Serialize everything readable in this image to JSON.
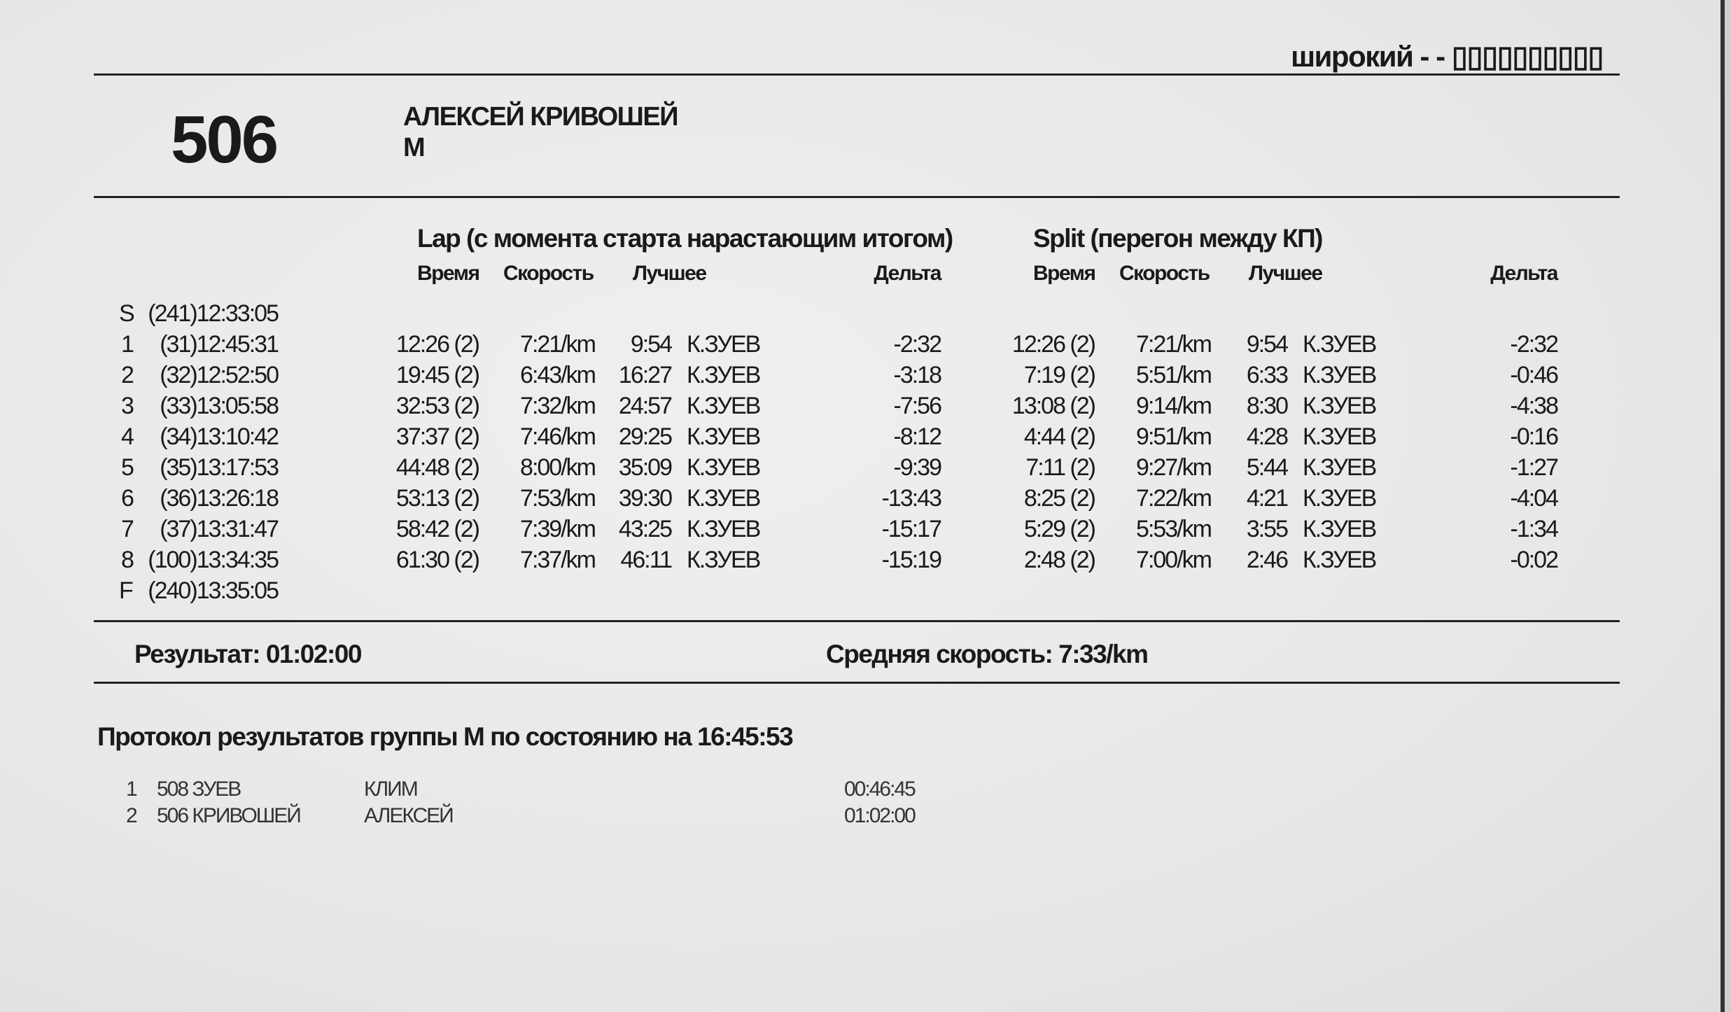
{
  "header": {
    "course_label": "широкий - - ▯▯▯▯▯▯▯▯▯▯",
    "bib": "506",
    "name": "АЛЕКСЕЙ КРИВОШЕЙ",
    "group": "М"
  },
  "lap": {
    "title": "Lap (с момента старта нарастающим итогом)",
    "columns": {
      "time": "Время",
      "speed": "Скорость",
      "best": "Лучшее",
      "delta": "Дельта"
    }
  },
  "split": {
    "title": "Split (перегон между КП)",
    "columns": {
      "time": "Время",
      "speed": "Скорость",
      "best": "Лучшее",
      "delta": "Дельта"
    }
  },
  "start": {
    "label": "S",
    "control": "(241)12:33:05"
  },
  "finish": {
    "label": "F",
    "control": "(240)13:35:05"
  },
  "rows": [
    {
      "n": "1",
      "control": "(31)12:45:31",
      "lap_time": "12:26 (2)",
      "lap_speed": "7:21/km",
      "lap_best": "9:54",
      "lap_best_name": "К.ЗУЕВ",
      "lap_delta": "-2:32",
      "split_time": "12:26 (2)",
      "split_speed": "7:21/km",
      "split_best": "9:54",
      "split_best_name": "К.ЗУЕВ",
      "split_delta": "-2:32"
    },
    {
      "n": "2",
      "control": "(32)12:52:50",
      "lap_time": "19:45 (2)",
      "lap_speed": "6:43/km",
      "lap_best": "16:27",
      "lap_best_name": "К.ЗУЕВ",
      "lap_delta": "-3:18",
      "split_time": "7:19 (2)",
      "split_speed": "5:51/km",
      "split_best": "6:33",
      "split_best_name": "К.ЗУЕВ",
      "split_delta": "-0:46"
    },
    {
      "n": "3",
      "control": "(33)13:05:58",
      "lap_time": "32:53 (2)",
      "lap_speed": "7:32/km",
      "lap_best": "24:57",
      "lap_best_name": "К.ЗУЕВ",
      "lap_delta": "-7:56",
      "split_time": "13:08 (2)",
      "split_speed": "9:14/km",
      "split_best": "8:30",
      "split_best_name": "К.ЗУЕВ",
      "split_delta": "-4:38"
    },
    {
      "n": "4",
      "control": "(34)13:10:42",
      "lap_time": "37:37 (2)",
      "lap_speed": "7:46/km",
      "lap_best": "29:25",
      "lap_best_name": "К.ЗУЕВ",
      "lap_delta": "-8:12",
      "split_time": "4:44 (2)",
      "split_speed": "9:51/km",
      "split_best": "4:28",
      "split_best_name": "К.ЗУЕВ",
      "split_delta": "-0:16"
    },
    {
      "n": "5",
      "control": "(35)13:17:53",
      "lap_time": "44:48 (2)",
      "lap_speed": "8:00/km",
      "lap_best": "35:09",
      "lap_best_name": "К.ЗУЕВ",
      "lap_delta": "-9:39",
      "split_time": "7:11 (2)",
      "split_speed": "9:27/km",
      "split_best": "5:44",
      "split_best_name": "К.ЗУЕВ",
      "split_delta": "-1:27"
    },
    {
      "n": "6",
      "control": "(36)13:26:18",
      "lap_time": "53:13 (2)",
      "lap_speed": "7:53/km",
      "lap_best": "39:30",
      "lap_best_name": "К.ЗУЕВ",
      "lap_delta": "-13:43",
      "split_time": "8:25 (2)",
      "split_speed": "7:22/km",
      "split_best": "4:21",
      "split_best_name": "К.ЗУЕВ",
      "split_delta": "-4:04"
    },
    {
      "n": "7",
      "control": "(37)13:31:47",
      "lap_time": "58:42 (2)",
      "lap_speed": "7:39/km",
      "lap_best": "43:25",
      "lap_best_name": "К.ЗУЕВ",
      "lap_delta": "-15:17",
      "split_time": "5:29 (2)",
      "split_speed": "5:53/km",
      "split_best": "3:55",
      "split_best_name": "К.ЗУЕВ",
      "split_delta": "-1:34"
    },
    {
      "n": "8",
      "control": "(100)13:34:35",
      "lap_time": "61:30 (2)",
      "lap_speed": "7:37/km",
      "lap_best": "46:11",
      "lap_best_name": "К.ЗУЕВ",
      "lap_delta": "-15:19",
      "split_time": "2:48 (2)",
      "split_speed": "7:00/km",
      "split_best": "2:46",
      "split_best_name": "К.ЗУЕВ",
      "split_delta": "-0:02"
    }
  ],
  "summary": {
    "result": "Результат: 01:02:00",
    "avg_speed": "Средняя скорость: 7:33/km"
  },
  "protocol": {
    "title": "Протокол результатов группы М по состоянию на 16:45:53",
    "entries": [
      {
        "rank": "1",
        "bib_surname": "508 ЗУЕВ",
        "first_name": "КЛИМ",
        "time": "00:46:45"
      },
      {
        "rank": "2",
        "bib_surname": "506 КРИВОШЕЙ",
        "first_name": "АЛЕКСЕЙ",
        "time": "01:02:00"
      }
    ]
  }
}
